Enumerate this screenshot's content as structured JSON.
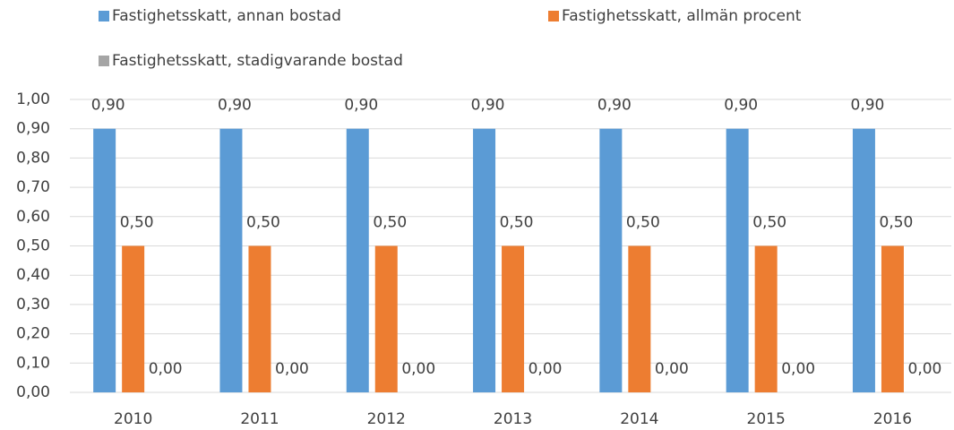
{
  "chart_data": {
    "type": "bar",
    "categories": [
      "2010",
      "2011",
      "2012",
      "2013",
      "2014",
      "2015",
      "2016"
    ],
    "series": [
      {
        "name": "Fastighetsskatt, annan bostad",
        "color": "#5b9bd5",
        "values": [
          0.9,
          0.9,
          0.9,
          0.9,
          0.9,
          0.9,
          0.9
        ],
        "value_labels": [
          "0,90",
          "0,90",
          "0,90",
          "0,90",
          "0,90",
          "0,90",
          "0,90"
        ]
      },
      {
        "name": "Fastighetsskatt, allmän procent",
        "color": "#ed7d31",
        "values": [
          0.5,
          0.5,
          0.5,
          0.5,
          0.5,
          0.5,
          0.5
        ],
        "value_labels": [
          "0,50",
          "0,50",
          "0,50",
          "0,50",
          "0,50",
          "0,50",
          "0,50"
        ]
      },
      {
        "name": "Fastighetsskatt, stadigvarande bostad",
        "color": "#a5a5a5",
        "values": [
          0,
          0,
          0,
          0,
          0,
          0,
          0
        ],
        "value_labels": [
          "0,00",
          "0,00",
          "0,00",
          "0,00",
          "0,00",
          "0,00",
          "0,00"
        ]
      }
    ],
    "ylim": [
      0,
      1
    ],
    "yticks": [
      {
        "value": 0,
        "label": "0,00"
      },
      {
        "value": 0.1,
        "label": "0,10"
      },
      {
        "value": 0.2,
        "label": "0,20"
      },
      {
        "value": 0.3,
        "label": "0,30"
      },
      {
        "value": 0.4,
        "label": "0,40"
      },
      {
        "value": 0.5,
        "label": "0,50"
      },
      {
        "value": 0.6,
        "label": "0,60"
      },
      {
        "value": 0.7,
        "label": "0,70"
      },
      {
        "value": 0.8,
        "label": "0,80"
      },
      {
        "value": 0.9,
        "label": "0,90"
      },
      {
        "value": 1,
        "label": "1,00"
      }
    ],
    "grid": true,
    "legend": "top"
  }
}
